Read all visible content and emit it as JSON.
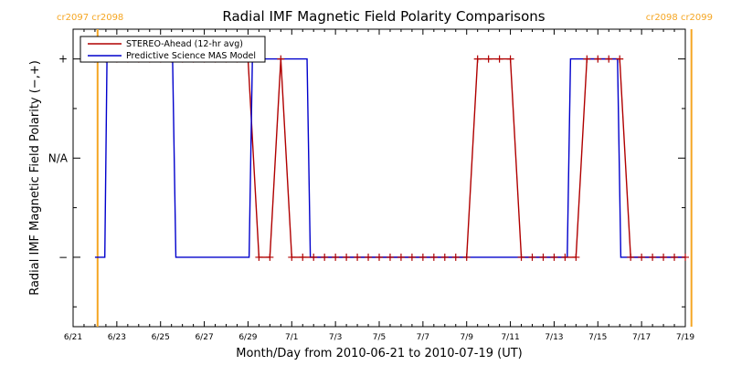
{
  "chart_data": {
    "type": "line",
    "title": "Radial IMF Magnetic Field Polarity Comparisons",
    "xlabel": "Month/Day from 2010-06-21 to 2010-07-19 (UT)",
    "ylabel": "Radial IMF Magnetic Field Polarity (−,+)",
    "xlim": [
      0,
      28
    ],
    "ylim": [
      -1.7,
      1.3
    ],
    "x_ticks": [
      {
        "x": 0,
        "label": "6/21"
      },
      {
        "x": 2,
        "label": "6/23"
      },
      {
        "x": 4,
        "label": "6/25"
      },
      {
        "x": 6,
        "label": "6/27"
      },
      {
        "x": 8,
        "label": "6/29"
      },
      {
        "x": 10,
        "label": "7/1"
      },
      {
        "x": 12,
        "label": "7/3"
      },
      {
        "x": 14,
        "label": "7/5"
      },
      {
        "x": 16,
        "label": "7/7"
      },
      {
        "x": 18,
        "label": "7/9"
      },
      {
        "x": 20,
        "label": "7/11"
      },
      {
        "x": 22,
        "label": "7/13"
      },
      {
        "x": 24,
        "label": "7/15"
      },
      {
        "x": 26,
        "label": "7/17"
      },
      {
        "x": 28,
        "label": "7/19"
      }
    ],
    "y_ticks": [
      {
        "y": 1,
        "label": "+"
      },
      {
        "y": 0,
        "label": "N/A"
      },
      {
        "y": -1,
        "label": "−"
      }
    ],
    "legend_position": "top-left",
    "carrington_markers": [
      {
        "x": 1.12,
        "label": "cr2097 cr2098",
        "align": "left"
      },
      {
        "x": 28.28,
        "label": "cr2098 cr2099",
        "align": "right"
      }
    ],
    "marker_color": "#f5a623",
    "series": [
      {
        "name": "STEREO-Ahead (12-hr avg)",
        "color": "#b00000",
        "marker": "+",
        "x": [
          1.0,
          1.5,
          2.0,
          2.5,
          3.0,
          3.5,
          4.0,
          4.5,
          5.0,
          5.5,
          6.0,
          6.5,
          7.0,
          7.5,
          8.0,
          8.5,
          9.0,
          9.5,
          10.0,
          10.5,
          11.0,
          11.5,
          12.0,
          12.5,
          13.0,
          13.5,
          14.0,
          14.5,
          15.0,
          15.5,
          16.0,
          16.5,
          17.0,
          17.5,
          18.0,
          18.5,
          19.0,
          19.5,
          20.0,
          20.5,
          21.0,
          21.5,
          22.0,
          22.5,
          23.0,
          23.5,
          24.0,
          24.5,
          25.0,
          25.5,
          26.0,
          26.5,
          27.0,
          27.5,
          28.0
        ],
        "y": [
          1,
          1,
          1,
          1,
          1,
          1,
          1,
          1,
          1,
          1,
          1,
          1,
          1,
          1,
          1,
          -1,
          -1,
          1,
          -1,
          -1,
          -1,
          -1,
          -1,
          -1,
          -1,
          -1,
          -1,
          -1,
          -1,
          -1,
          -1,
          -1,
          -1,
          -1,
          -1,
          1,
          1,
          1,
          1,
          -1,
          -1,
          -1,
          -1,
          -1,
          -1,
          1,
          1,
          1,
          1,
          -1,
          -1,
          -1,
          -1,
          -1,
          -1
        ]
      },
      {
        "name": "Predictive Science MAS Model",
        "color": "#0000cc",
        "x": [
          1.0,
          1.45,
          1.55,
          4.55,
          4.7,
          8.05,
          8.2,
          10.7,
          10.85,
          22.6,
          22.75,
          24.9,
          25.05,
          28.0
        ],
        "y": [
          -1,
          -1,
          1,
          1,
          -1,
          -1,
          1,
          1,
          -1,
          -1,
          1,
          1,
          -1,
          -1
        ]
      }
    ]
  }
}
